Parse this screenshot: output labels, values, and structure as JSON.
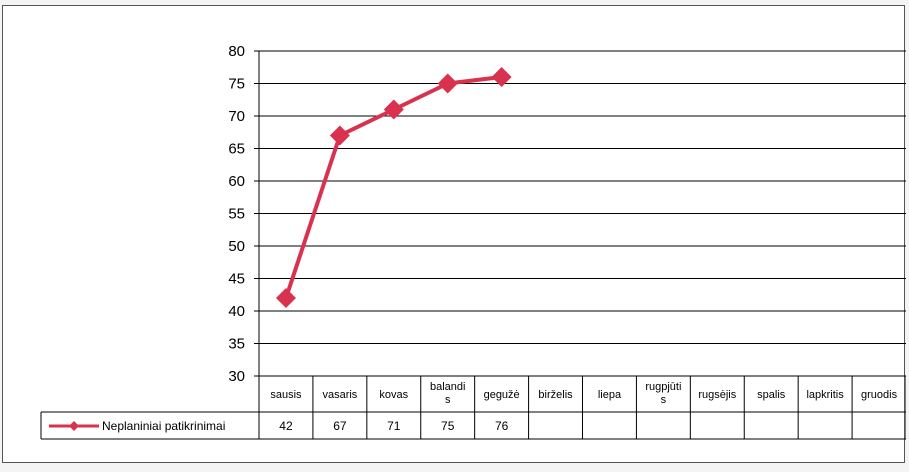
{
  "chart_data": {
    "type": "line",
    "categories": [
      "sausis",
      "vasaris",
      "kovas",
      "balandis",
      "gegužė",
      "birželis",
      "liepa",
      "rugpjūtis",
      "rugsėjis",
      "spalis",
      "lapkritis",
      "gruodis"
    ],
    "category_display_lines": [
      [
        "sausis"
      ],
      [
        "vasaris"
      ],
      [
        "kovas"
      ],
      [
        "balandi",
        "s"
      ],
      [
        "gegužė"
      ],
      [
        "birželis"
      ],
      [
        "liepa"
      ],
      [
        "rugpjūti",
        "s"
      ],
      [
        "rugsėjis"
      ],
      [
        "spalis"
      ],
      [
        "lapkritis"
      ],
      [
        "gruodis"
      ]
    ],
    "series": [
      {
        "name": "Neplaniniai patikrinimai",
        "values": [
          42,
          67,
          71,
          75,
          76,
          null,
          null,
          null,
          null,
          null,
          null,
          null
        ]
      }
    ],
    "ylim": [
      30,
      80
    ],
    "yticks": [
      30,
      35,
      40,
      45,
      50,
      55,
      60,
      65,
      70,
      75,
      80
    ],
    "grid": true,
    "legend": "data-table",
    "colors": {
      "series": "#d9324f",
      "grid": "#000000",
      "border": "#555555"
    }
  }
}
